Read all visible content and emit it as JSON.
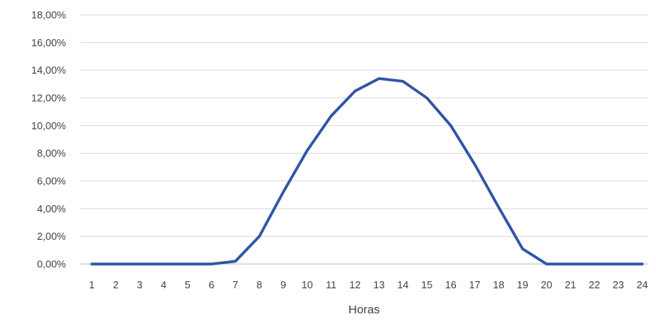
{
  "chart_data": {
    "type": "line",
    "title": "",
    "xlabel": "Horas",
    "ylabel": "",
    "x": [
      1,
      2,
      3,
      4,
      5,
      6,
      7,
      8,
      9,
      10,
      11,
      12,
      13,
      14,
      15,
      16,
      17,
      18,
      19,
      20,
      21,
      22,
      23,
      24
    ],
    "y_ticks": [
      "0,00%",
      "2,00%",
      "4,00%",
      "6,00%",
      "8,00%",
      "10,00%",
      "12,00%",
      "14,00%",
      "16,00%",
      "18,00%"
    ],
    "ylim": [
      0,
      18
    ],
    "grid": "horizontal",
    "legend": "none",
    "series": [
      {
        "values": [
          0,
          0,
          0,
          0,
          0,
          0,
          0.2,
          2.0,
          5.2,
          8.2,
          10.7,
          12.5,
          13.4,
          13.2,
          12.0,
          10.0,
          7.2,
          4.1,
          1.1,
          0,
          0,
          0,
          0,
          0
        ],
        "color": "#2f55a4"
      }
    ]
  }
}
